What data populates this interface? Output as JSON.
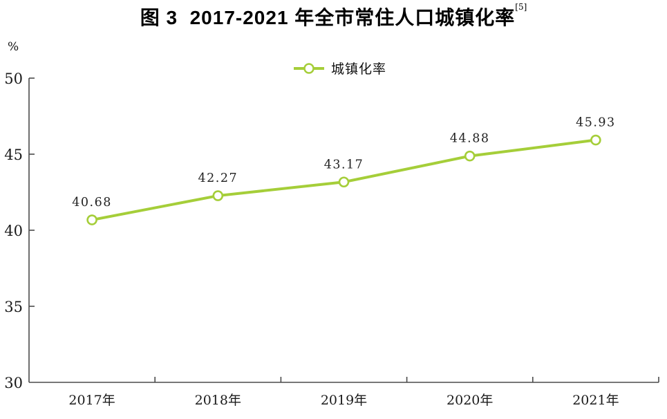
{
  "title": {
    "text": "图 3  2017-2021 年全市常住人口城镇化率",
    "superscript": "[5]"
  },
  "chart_data": {
    "type": "line",
    "title": "图 3  2017-2021 年全市常住人口城镇化率[5]",
    "categories": [
      "2017年",
      "2018年",
      "2019年",
      "2020年",
      "2021年"
    ],
    "series": [
      {
        "name": "城镇化率",
        "values": [
          40.68,
          42.27,
          43.17,
          44.88,
          45.93
        ]
      }
    ],
    "data_labels": [
      "40.68",
      "42.27",
      "43.17",
      "44.88",
      "45.93"
    ],
    "xlabel": "",
    "ylabel": "%",
    "ylim": [
      30,
      50
    ],
    "yticks": [
      30,
      35,
      40,
      45,
      50
    ],
    "grid": false,
    "legend_position": "top-center",
    "legend_entries": [
      "城镇化率"
    ],
    "colors": {
      "line": "#A5CE39",
      "marker_fill": "#FFFFFF",
      "axis": "#4A4A4A",
      "text": "#1A1A1A"
    }
  }
}
